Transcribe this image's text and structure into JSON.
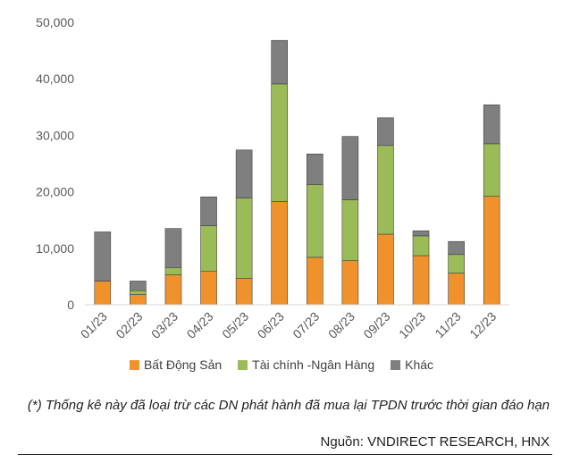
{
  "chart_data": {
    "type": "bar",
    "stacked": true,
    "categories": [
      "01/23",
      "02/23",
      "03/23",
      "04/23",
      "05/23",
      "06/23",
      "07/23",
      "08/23",
      "09/23",
      "10/23",
      "11/23",
      "12/23"
    ],
    "series": [
      {
        "name": "Bất Động Sản",
        "color": "#F0922B",
        "values": [
          4200,
          1800,
          5300,
          5900,
          4700,
          18300,
          8400,
          7800,
          12500,
          8700,
          5600,
          19200
        ]
      },
      {
        "name": "Tài chính -Ngân Hàng",
        "color": "#9BBB59",
        "values": [
          0,
          700,
          1300,
          8100,
          14200,
          20800,
          12900,
          10800,
          15700,
          3500,
          3300,
          9300
        ]
      },
      {
        "name": "Khác",
        "color": "#7F7F7F",
        "values": [
          8700,
          1700,
          6900,
          5100,
          8500,
          7700,
          5400,
          11200,
          4900,
          900,
          2300,
          6900
        ]
      }
    ],
    "ylim": [
      0,
      50000
    ],
    "yticks": [
      "0",
      "10,000",
      "20,000",
      "30,000",
      "40,000",
      "50,000"
    ],
    "grid": false,
    "legend_position": "bottom"
  },
  "footnote": "(*) Thống kê này đã loại trừ các DN phát hành đã mua lại TPDN trước thời gian đáo hạn",
  "source": "Nguồn: VNDIRECT RESEARCH, HNX"
}
